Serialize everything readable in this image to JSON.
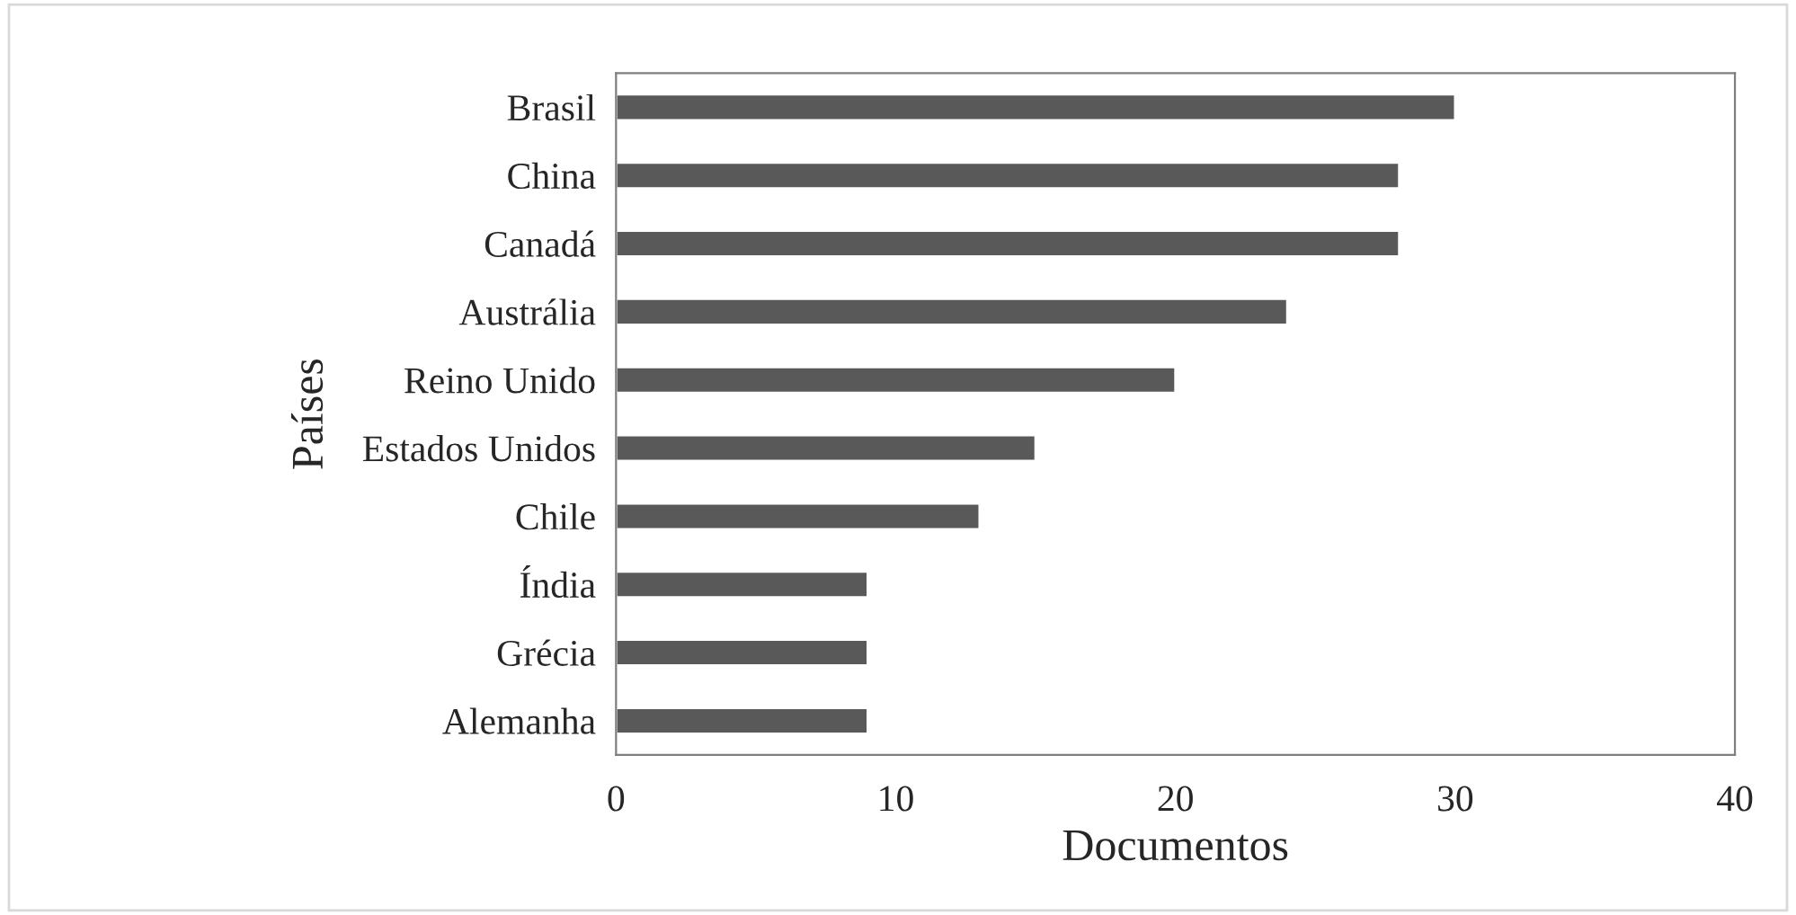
{
  "chart_data": {
    "type": "bar",
    "orientation": "horizontal",
    "categories": [
      "Brasil",
      "China",
      "Canadá",
      "Austrália",
      "Reino Unido",
      "Estados Unidos",
      "Chile",
      "Índia",
      "Grécia",
      "Alemanha"
    ],
    "values": [
      30,
      28,
      28,
      24,
      20,
      15,
      13,
      9,
      9,
      9
    ],
    "color": "#595959",
    "xlabel": "Documentos",
    "ylabel": "Países",
    "xlim": [
      0,
      40
    ],
    "xticks": [
      0,
      10,
      20,
      30,
      40
    ],
    "grid": false
  }
}
